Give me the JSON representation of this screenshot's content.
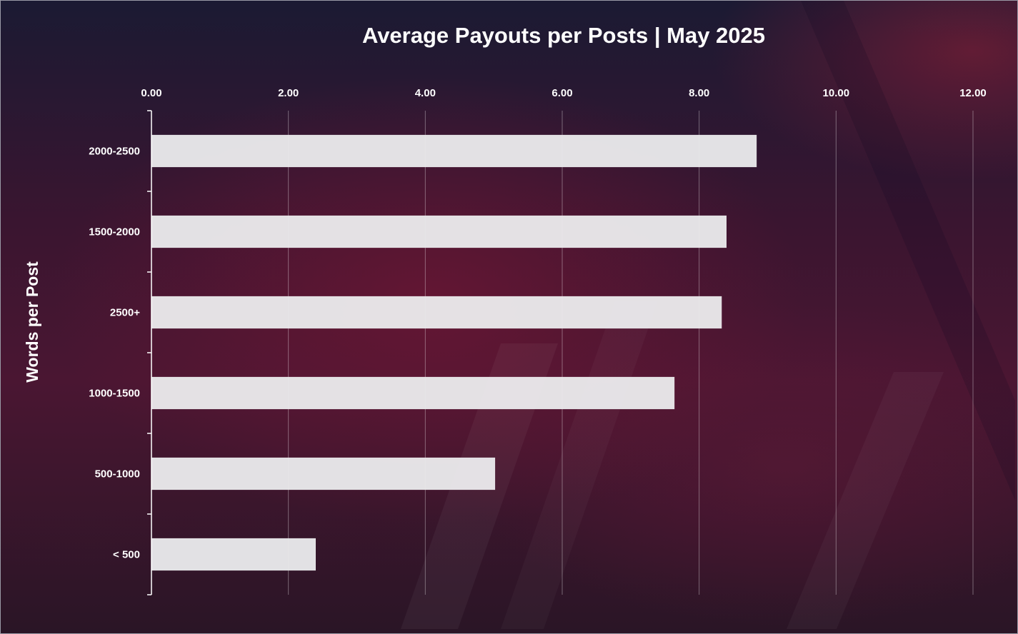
{
  "chart_data": {
    "type": "bar",
    "orientation": "horizontal",
    "title": "Average Payouts per Posts | May 2025",
    "xlabel": "",
    "ylabel": "Words per Post",
    "xlim": [
      0,
      12
    ],
    "x_ticks": [
      "0.00",
      "2.00",
      "4.00",
      "6.00",
      "8.00",
      "10.00",
      "12.00"
    ],
    "x_axis_position": "top",
    "grid": true,
    "legend": "none",
    "categories": [
      "2000-2500",
      "1500-2000",
      "2500+",
      "1000-1500",
      "500-1000",
      "< 500"
    ],
    "values": [
      8.84,
      8.4,
      8.33,
      7.64,
      5.02,
      2.4
    ],
    "bar_color": "#ececee"
  }
}
